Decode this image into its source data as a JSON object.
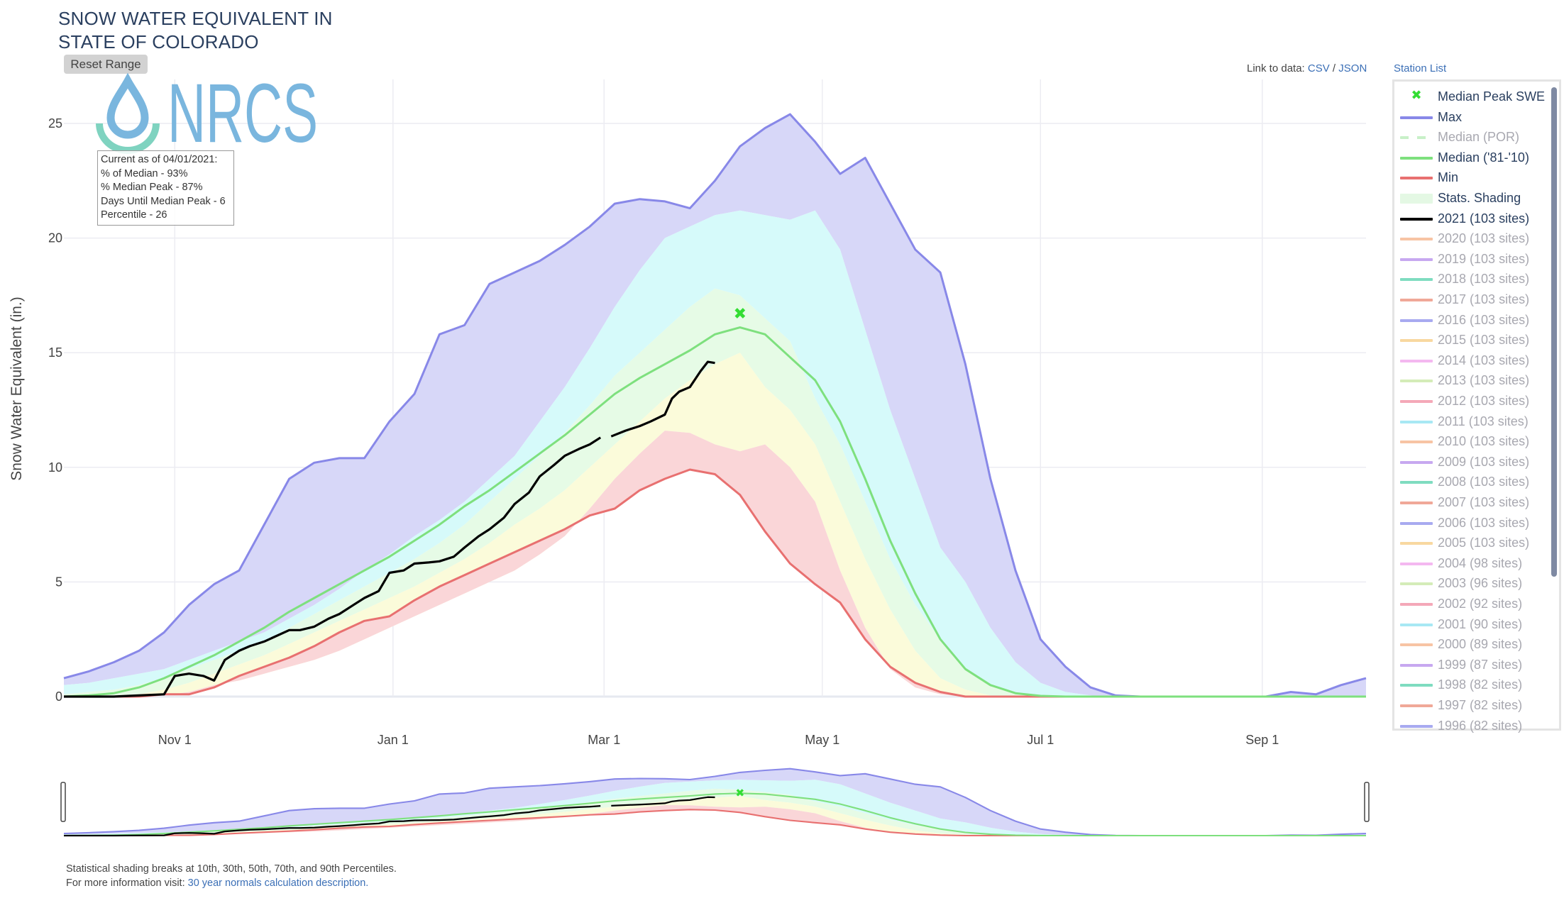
{
  "header": {
    "title_line1": "SNOW WATER EQUIVALENT IN",
    "title_line2": "STATE OF COLORADO",
    "reset_button": "Reset Range"
  },
  "links": {
    "prefix": "Link to data: ",
    "csv": "CSV",
    "sep": " / ",
    "json": "JSON",
    "station_list": "Station List"
  },
  "logo": {
    "text": "NRCS",
    "drop_color": "#7ab6de",
    "arc_color": "#7fd3c0"
  },
  "info_box": {
    "line1": "Current as of 04/01/2021:",
    "line2": "% of Median - 93%",
    "line3": "% Median Peak - 87%",
    "line4": "Days Until Median Peak - 6",
    "line5": "Percentile - 26"
  },
  "legend": {
    "items": [
      {
        "label": "Median Peak SWE",
        "color": "#33dd33",
        "type": "marker",
        "active": true
      },
      {
        "label": "Max",
        "color": "#8888e8",
        "type": "line",
        "active": true
      },
      {
        "label": "Median (POR)",
        "color": "#c8f0c8",
        "type": "dash",
        "active": false
      },
      {
        "label": "Median ('81-'10)",
        "color": "#7ee07e",
        "type": "line",
        "active": true
      },
      {
        "label": "Min",
        "color": "#e87070",
        "type": "line",
        "active": true
      },
      {
        "label": "Stats. Shading",
        "color": "#e4f8e4",
        "type": "band",
        "active": true
      },
      {
        "label": "2021 (103 sites)",
        "color": "#000000",
        "type": "line",
        "active": true
      },
      {
        "label": "2020 (103 sites)",
        "color": "#f7c4a4",
        "type": "line",
        "active": false
      },
      {
        "label": "2019 (103 sites)",
        "color": "#c7a8f0",
        "type": "line",
        "active": false
      },
      {
        "label": "2018 (103 sites)",
        "color": "#7fdcc0",
        "type": "line",
        "active": false
      },
      {
        "label": "2017 (103 sites)",
        "color": "#f0a898",
        "type": "line",
        "active": false
      },
      {
        "label": "2016 (103 sites)",
        "color": "#a8aaf0",
        "type": "line",
        "active": false
      },
      {
        "label": "2015 (103 sites)",
        "color": "#f8d8a0",
        "type": "line",
        "active": false
      },
      {
        "label": "2014 (103 sites)",
        "color": "#f4b8f0",
        "type": "line",
        "active": false
      },
      {
        "label": "2013 (103 sites)",
        "color": "#d4ecb8",
        "type": "line",
        "active": false
      },
      {
        "label": "2012 (103 sites)",
        "color": "#f4a8b8",
        "type": "line",
        "active": false
      },
      {
        "label": "2011 (103 sites)",
        "color": "#a8e8f4",
        "type": "line",
        "active": false
      },
      {
        "label": "2010 (103 sites)",
        "color": "#f7c4a4",
        "type": "line",
        "active": false
      },
      {
        "label": "2009 (103 sites)",
        "color": "#c7a8f0",
        "type": "line",
        "active": false
      },
      {
        "label": "2008 (103 sites)",
        "color": "#7fdcc0",
        "type": "line",
        "active": false
      },
      {
        "label": "2007 (103 sites)",
        "color": "#f0a898",
        "type": "line",
        "active": false
      },
      {
        "label": "2006 (103 sites)",
        "color": "#a8aaf0",
        "type": "line",
        "active": false
      },
      {
        "label": "2005 (103 sites)",
        "color": "#f8d8a0",
        "type": "line",
        "active": false
      },
      {
        "label": "2004 (98 sites)",
        "color": "#f4b8f0",
        "type": "line",
        "active": false
      },
      {
        "label": "2003 (96 sites)",
        "color": "#d4ecb8",
        "type": "line",
        "active": false
      },
      {
        "label": "2002 (92 sites)",
        "color": "#f4a8b8",
        "type": "line",
        "active": false
      },
      {
        "label": "2001 (90 sites)",
        "color": "#a8e8f4",
        "type": "line",
        "active": false
      },
      {
        "label": "2000 (89 sites)",
        "color": "#f7c4a4",
        "type": "line",
        "active": false
      },
      {
        "label": "1999 (87 sites)",
        "color": "#c7a8f0",
        "type": "line",
        "active": false
      },
      {
        "label": "1998 (82 sites)",
        "color": "#7fdcc0",
        "type": "line",
        "active": false
      },
      {
        "label": "1997 (82 sites)",
        "color": "#f0a898",
        "type": "line",
        "active": false
      },
      {
        "label": "1996 (82 sites)",
        "color": "#a8aaf0",
        "type": "line",
        "active": false
      }
    ]
  },
  "footer": {
    "line1": "Statistical shading breaks at 10th, 30th, 50th, 70th, and 90th Percentiles.",
    "line2_prefix": "For more information visit: ",
    "line2_link": "30 year normals calculation description."
  },
  "colors": {
    "band_max": "#d7d7f8",
    "band_90": "#d6fafa",
    "band_70": "#e6fbe6",
    "band_50": "#fbfbda",
    "band_30": "#fad6d8",
    "max_line": "#8888e8",
    "median_line": "#7ee07e",
    "min_line": "#e87070",
    "current_line": "#000000",
    "peak_marker": "#33dd33",
    "grid": "#ececf2"
  },
  "chart_data": {
    "type": "area",
    "title": "SNOW WATER EQUIVALENT IN STATE OF COLORADO",
    "xlabel": "",
    "ylabel": "Snow Water Equivalent (in.)",
    "ylim": [
      0,
      26.9
    ],
    "yticks": [
      0,
      5,
      10,
      15,
      20,
      25
    ],
    "x_axis_note": "day index from Oct 1 (0) to Sep 30 (364)",
    "xticks": [
      {
        "label": "Nov 1",
        "day": 31
      },
      {
        "label": "Jan 1",
        "day": 92
      },
      {
        "label": "Mar 1",
        "day": 151
      },
      {
        "label": "May 1",
        "day": 212
      },
      {
        "label": "Jul 1",
        "day": 273
      },
      {
        "label": "Sep 1",
        "day": 335
      }
    ],
    "grid": true,
    "legend_position": "right",
    "x": [
      0,
      7,
      14,
      21,
      28,
      35,
      42,
      49,
      56,
      63,
      70,
      77,
      84,
      91,
      98,
      105,
      112,
      119,
      126,
      133,
      140,
      147,
      154,
      161,
      168,
      175,
      182,
      189,
      196,
      203,
      210,
      217,
      224,
      231,
      238,
      245,
      252,
      259,
      266,
      273,
      280,
      287,
      294,
      301,
      308,
      315,
      322,
      329,
      336,
      343,
      350,
      357,
      364
    ],
    "series": [
      {
        "name": "Max",
        "values": [
          0.8,
          1.1,
          1.5,
          2.0,
          2.8,
          4.0,
          4.9,
          5.5,
          7.5,
          9.5,
          10.2,
          10.4,
          10.4,
          12.0,
          13.2,
          15.8,
          16.2,
          18.0,
          18.5,
          19.0,
          19.7,
          20.5,
          21.5,
          21.7,
          21.6,
          21.3,
          22.5,
          24.0,
          24.8,
          25.4,
          24.2,
          22.8,
          23.5,
          21.5,
          19.5,
          18.5,
          14.5,
          9.5,
          5.5,
          2.5,
          1.3,
          0.4,
          0.05,
          0,
          0,
          0,
          0,
          0,
          0,
          0.2,
          0.1,
          0.5,
          0.8
        ]
      },
      {
        "name": "90th Percentile",
        "values": [
          0.5,
          0.6,
          0.8,
          1.0,
          1.2,
          1.6,
          2.0,
          2.4,
          2.8,
          3.4,
          4.0,
          4.7,
          5.5,
          6.2,
          7.0,
          7.7,
          8.5,
          9.5,
          10.5,
          12.0,
          13.5,
          15.2,
          17.0,
          18.6,
          20.0,
          20.5,
          21.0,
          21.2,
          21.0,
          20.8,
          21.2,
          19.5,
          16.0,
          12.5,
          9.5,
          6.5,
          5.0,
          3.0,
          1.5,
          0.6,
          0.2,
          0.05,
          0,
          0,
          0,
          0,
          0,
          0,
          0,
          0,
          0,
          0,
          0
        ]
      },
      {
        "name": "70th Percentile",
        "values": [
          0.1,
          0.2,
          0.3,
          0.5,
          0.8,
          1.2,
          1.6,
          2.0,
          2.4,
          3.0,
          3.6,
          4.2,
          4.8,
          5.4,
          6.0,
          6.7,
          7.5,
          8.5,
          9.5,
          10.5,
          11.5,
          12.7,
          14.0,
          15.0,
          16.0,
          17.0,
          17.8,
          17.5,
          16.5,
          15.5,
          13.0,
          11.0,
          8.5,
          6.0,
          4.0,
          2.5,
          1.2,
          0.5,
          0.15,
          0,
          0,
          0,
          0,
          0,
          0,
          0,
          0,
          0,
          0,
          0,
          0,
          0,
          0
        ]
      },
      {
        "name": "Median ('81-'10)",
        "values": [
          0,
          0.05,
          0.15,
          0.4,
          0.8,
          1.3,
          1.8,
          2.4,
          3.0,
          3.7,
          4.3,
          4.9,
          5.5,
          6.1,
          6.8,
          7.5,
          8.3,
          9.0,
          9.8,
          10.6,
          11.4,
          12.3,
          13.2,
          13.9,
          14.5,
          15.1,
          15.8,
          16.1,
          15.8,
          14.8,
          13.8,
          12.0,
          9.5,
          6.8,
          4.5,
          2.5,
          1.2,
          0.5,
          0.15,
          0.03,
          0,
          0,
          0,
          0,
          0,
          0,
          0,
          0,
          0,
          0,
          0,
          0,
          0
        ]
      },
      {
        "name": "30th Percentile",
        "values": [
          0,
          0,
          0,
          0.1,
          0.3,
          0.6,
          1.0,
          1.4,
          1.8,
          2.3,
          2.8,
          3.3,
          3.8,
          4.3,
          4.8,
          5.4,
          6.0,
          6.7,
          7.5,
          8.2,
          9.0,
          10.0,
          11.0,
          12.0,
          13.0,
          13.8,
          14.5,
          15.0,
          13.5,
          12.5,
          11.0,
          8.5,
          6.0,
          3.8,
          2.0,
          0.8,
          0.3,
          0.05,
          0,
          0,
          0,
          0,
          0,
          0,
          0,
          0,
          0,
          0,
          0,
          0,
          0,
          0,
          0
        ]
      },
      {
        "name": "10th Percentile",
        "values": [
          0,
          0,
          0,
          0,
          0.05,
          0.2,
          0.5,
          0.7,
          1.0,
          1.3,
          1.6,
          2.0,
          2.5,
          3.0,
          3.5,
          4.0,
          4.5,
          5.0,
          5.5,
          6.2,
          7.0,
          8.2,
          9.5,
          10.6,
          11.6,
          11.5,
          11.0,
          10.7,
          11.0,
          10.0,
          8.5,
          5.5,
          3.0,
          1.2,
          0.4,
          0.1,
          0,
          0,
          0,
          0,
          0,
          0,
          0,
          0,
          0,
          0,
          0,
          0,
          0,
          0,
          0,
          0,
          0
        ]
      },
      {
        "name": "Min",
        "values": [
          0,
          0,
          0,
          0,
          0.1,
          0.1,
          0.4,
          0.9,
          1.3,
          1.7,
          2.2,
          2.8,
          3.3,
          3.5,
          4.2,
          4.8,
          5.3,
          5.8,
          6.3,
          6.8,
          7.3,
          7.9,
          8.2,
          9.0,
          9.5,
          9.9,
          9.7,
          8.8,
          7.2,
          5.8,
          4.9,
          4.1,
          2.5,
          1.3,
          0.6,
          0.2,
          0,
          0,
          0,
          0,
          0,
          0,
          0,
          0,
          0,
          0,
          0,
          0,
          0,
          0,
          0,
          0,
          0
        ]
      }
    ],
    "current_year": {
      "name": "2021 (103 sites)",
      "segments": [
        {
          "x": [
            0,
            14,
            21,
            28,
            31,
            35,
            39,
            42,
            45,
            49,
            52,
            56,
            63,
            66,
            70,
            74,
            77,
            81,
            84,
            88,
            91,
            95,
            98,
            102,
            105,
            109,
            112,
            116,
            119,
            123,
            126,
            130,
            133,
            137,
            140,
            144,
            147,
            150
          ],
          "values": [
            0,
            0,
            0.05,
            0.1,
            0.9,
            1.0,
            0.9,
            0.7,
            1.6,
            2.0,
            2.2,
            2.4,
            2.9,
            2.9,
            3.05,
            3.4,
            3.6,
            4.0,
            4.3,
            4.6,
            5.4,
            5.5,
            5.8,
            5.85,
            5.9,
            6.1,
            6.5,
            7.0,
            7.3,
            7.8,
            8.4,
            8.9,
            9.6,
            10.1,
            10.5,
            10.8,
            11.0,
            11.3
          ]
        },
        {
          "x": [
            153,
            157,
            161,
            164,
            168,
            170,
            172,
            175,
            178,
            180,
            182
          ],
          "values": [
            11.35,
            11.6,
            11.8,
            12.0,
            12.3,
            13.0,
            13.3,
            13.5,
            14.2,
            14.6,
            14.55
          ]
        }
      ]
    },
    "median_peak": {
      "day": 189,
      "value": 16.7,
      "label": "Median Peak SWE"
    }
  }
}
